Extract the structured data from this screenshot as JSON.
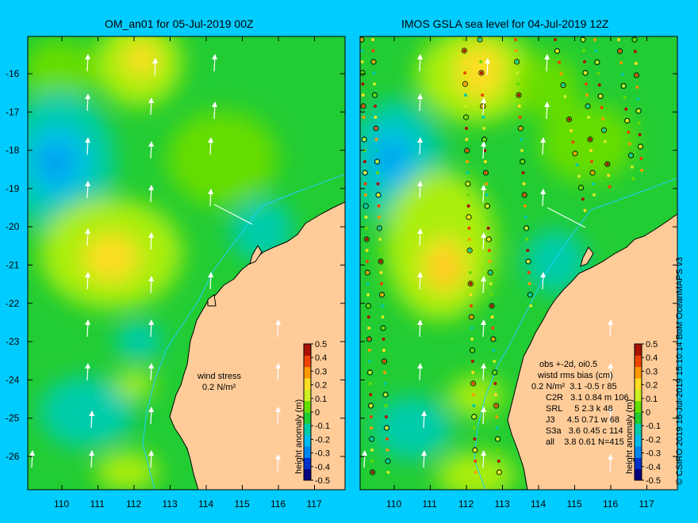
{
  "panels": [
    {
      "title": "OM_an01 for 05-Jul-2019 00Z"
    },
    {
      "title": "IMOS GSLA sea level  for 04-Jul-2019 12Z"
    }
  ],
  "lat_ticks": [
    "-16",
    "-17",
    "-18",
    "-19",
    "-20",
    "-21",
    "-22",
    "-23",
    "-24",
    "-25",
    "-26"
  ],
  "lon_ticks": [
    "110",
    "111",
    "112",
    "113",
    "114",
    "115",
    "116",
    "117"
  ],
  "colorbar": {
    "label": "height anomaly (m)",
    "ticks": [
      "0.5",
      "0.4",
      "0.3",
      "0.2",
      "0.1",
      "0",
      "-0.1",
      "-0.2",
      "-0.3",
      "-0.4",
      "-0.5"
    ],
    "colors": [
      "#000080",
      "#0033cc",
      "#0088ee",
      "#00bbee",
      "#00ccaa",
      "#22cc33",
      "#66dd00",
      "#ccee22",
      "#ffdd22",
      "#ff9900",
      "#ee4400",
      "#aa1100"
    ]
  },
  "wind_legend": {
    "label": "wind stress",
    "value": "0.2 N/m²"
  },
  "stats": {
    "header1": "obs +-2d, oi0.5",
    "header2": "wistd rms bias (cm)",
    "rows": [
      "C2R   3.1 0.84 m 106",
      "SRL     5 2.3 k 48",
      "J3     4.5 0.71 w 68",
      "S3a   3.6 0.45 c 114",
      "all    3.8 0.61 N=415"
    ],
    "overlap": "0.2 N/m²  3.1 -0.5 r 85"
  },
  "credit": "© CSIRO 2019   16-Jul-2019 15:10:14 BoM OceanMAPS v3",
  "colors": {
    "background": "#00ccff",
    "land": "#ffcc99",
    "ocean_base": "#22cc33"
  }
}
